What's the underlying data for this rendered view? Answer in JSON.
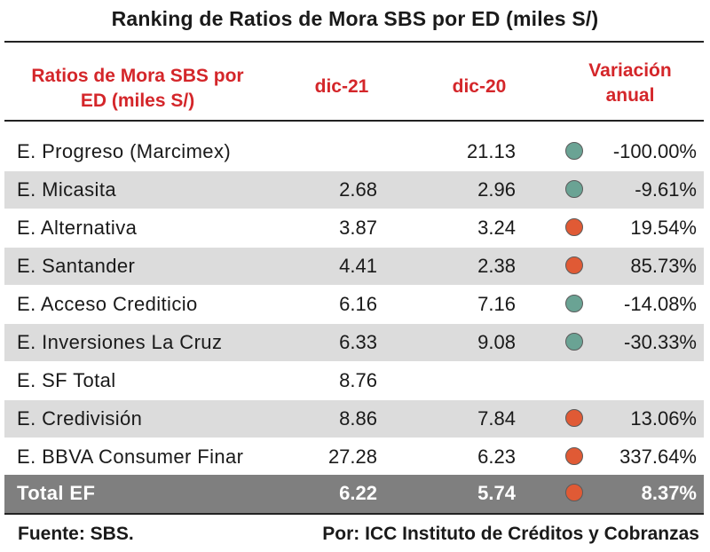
{
  "title": "Ranking de Ratios de Mora SBS por ED (miles S/)",
  "headers": {
    "name_line1": "Ratios de Mora SBS por",
    "name_line2": "ED (miles S/)",
    "col_dic21": "dic-21",
    "col_dic20": "dic-20",
    "var_line1": "Variación",
    "var_line2": "anual"
  },
  "colors": {
    "header_red": "#d4262a",
    "green_dot": "#6aa394",
    "orange_dot": "#e05a35",
    "shade": "#dcdcdc",
    "total_bg": "#7f7f7f"
  },
  "rows": [
    {
      "name": "E. Progreso (Marcimex)",
      "dic21": "",
      "dic20": "21.13",
      "indicator": "green",
      "variation": "-100.00%"
    },
    {
      "name": "E. Micasita",
      "dic21": "2.68",
      "dic20": "2.96",
      "indicator": "green",
      "variation": "-9.61%"
    },
    {
      "name": "E. Alternativa",
      "dic21": "3.87",
      "dic20": "3.24",
      "indicator": "orange",
      "variation": "19.54%"
    },
    {
      "name": "E. Santander",
      "dic21": "4.41",
      "dic20": "2.38",
      "indicator": "orange",
      "variation": "85.73%"
    },
    {
      "name": "E. Acceso Crediticio",
      "dic21": "6.16",
      "dic20": "7.16",
      "indicator": "green",
      "variation": "-14.08%"
    },
    {
      "name": "E. Inversiones La Cruz",
      "dic21": "6.33",
      "dic20": "9.08",
      "indicator": "green",
      "variation": "-30.33%"
    },
    {
      "name": "E. SF Total",
      "dic21": "8.76",
      "dic20": "",
      "indicator": "",
      "variation": ""
    },
    {
      "name": "E. Credivisión",
      "dic21": "8.86",
      "dic20": "7.84",
      "indicator": "orange",
      "variation": "13.06%"
    },
    {
      "name": "E. BBVA Consumer Finar",
      "dic21": "27.28",
      "dic20": "6.23",
      "indicator": "orange",
      "variation": "337.64%"
    }
  ],
  "total": {
    "name": "Total EF",
    "dic21": "6.22",
    "dic20": "5.74",
    "indicator": "orange",
    "variation": "8.37%"
  },
  "footer": {
    "source": "Fuente: SBS.",
    "credit": "Por: ICC Instituto de Créditos y Cobranzas"
  }
}
